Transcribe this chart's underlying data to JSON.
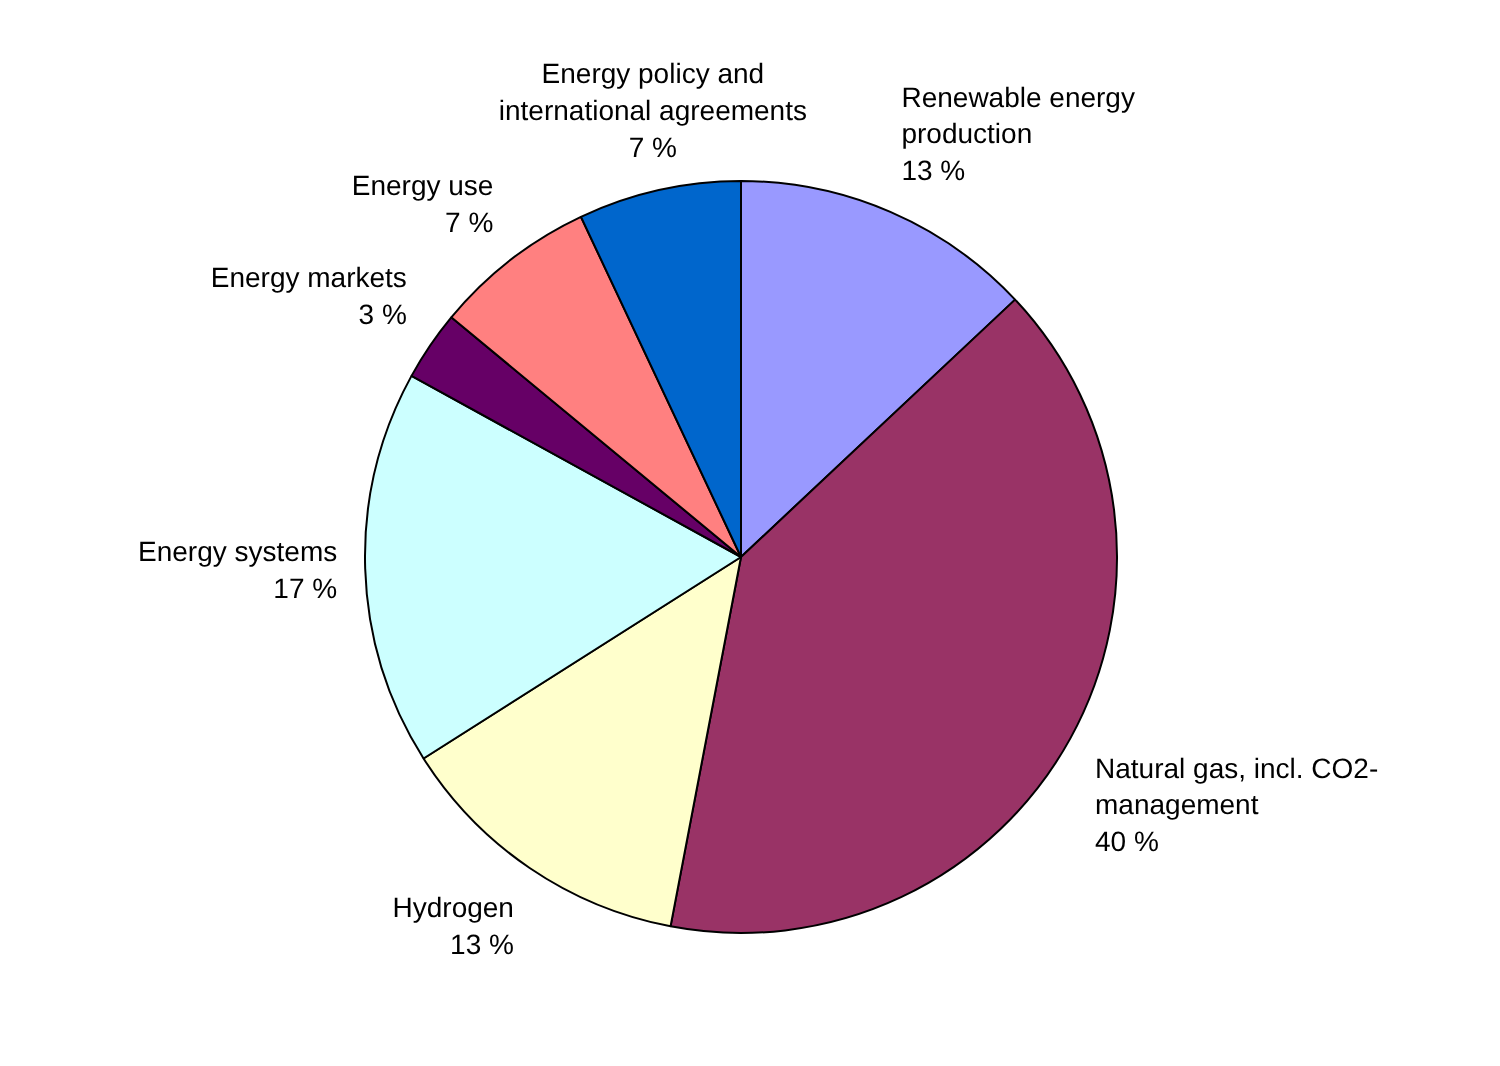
{
  "chart_data": {
    "type": "pie",
    "categories": [
      "Renewable energy production",
      "Natural gas, incl. CO2-management",
      "Hydrogen",
      "Energy systems",
      "Energy markets",
      "Energy use",
      "Energy policy and international agreements"
    ],
    "values": [
      13,
      40,
      13,
      17,
      3,
      7,
      7
    ],
    "colors": [
      "#9999ff",
      "#993366",
      "#ffffcc",
      "#ccffff",
      "#660066",
      "#ff8080",
      "#0066cc"
    ],
    "value_labels": [
      "13 %",
      "40 %",
      "13 %",
      "17 %",
      "3 %",
      "7 %",
      "7 %"
    ]
  }
}
